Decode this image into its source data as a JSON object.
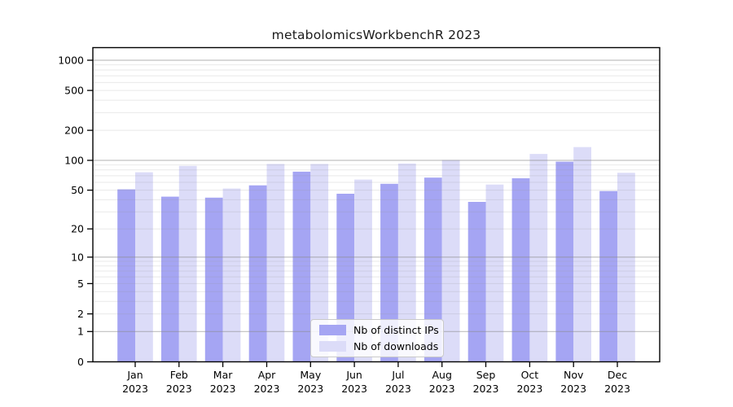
{
  "page": {
    "background": "#ffffff"
  },
  "chart_data": {
    "type": "bar",
    "title": "metabolomicsWorkbenchR 2023",
    "categories": [
      "Jan 2023",
      "Feb 2023",
      "Mar 2023",
      "Apr 2023",
      "May 2023",
      "Jun 2023",
      "Jul 2023",
      "Aug 2023",
      "Sep 2023",
      "Oct 2023",
      "Nov 2023",
      "Dec 2023"
    ],
    "x_tick_month": [
      "Jan",
      "Feb",
      "Mar",
      "Apr",
      "May",
      "Jun",
      "Jul",
      "Aug",
      "Sep",
      "Oct",
      "Nov",
      "Dec"
    ],
    "x_tick_year": "2023",
    "series": [
      {
        "name": "Nb of distinct IPs",
        "color": "#a5a5f3",
        "values": [
          51,
          43,
          42,
          56,
          77,
          46,
          58,
          67,
          38,
          66,
          97,
          49
        ]
      },
      {
        "name": "Nb of downloads",
        "color": "#dcdcf8",
        "values": [
          76,
          88,
          52,
          92,
          92,
          64,
          93,
          101,
          57,
          116,
          136,
          75
        ]
      }
    ],
    "y_axis": {
      "scale": "log1p",
      "ticks": [
        0,
        1,
        2,
        5,
        10,
        20,
        50,
        100,
        200,
        500,
        1000
      ],
      "top_value": 1000
    },
    "grid": {
      "orientation": "horizontal",
      "major_values": [
        1,
        10,
        100,
        1000
      ],
      "minor_values": [
        2,
        3,
        4,
        5,
        6,
        7,
        8,
        9,
        20,
        30,
        40,
        50,
        60,
        70,
        80,
        90,
        200,
        300,
        400,
        500,
        600,
        700,
        800,
        900
      ],
      "major_color": "#b3b3b3",
      "minor_color": "#ebebeb"
    },
    "legend": {
      "position": "bottom-center"
    },
    "axis_color": "#000000",
    "tick_label_color": "#000000"
  }
}
